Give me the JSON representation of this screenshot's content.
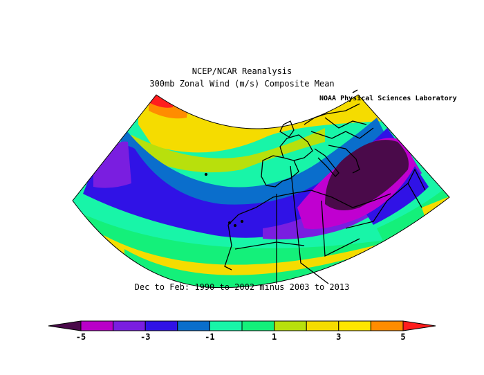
{
  "header": {
    "title_line1": "NCEP/NCAR Reanalysis",
    "title_line2": "300mb Zonal Wind (m/s) Composite Mean",
    "credit": "NOAA Physical Sciences Laboratory"
  },
  "subtitle": "Dec to Feb: 1990 to 2002 minus 2003 to 2013",
  "colorbar": {
    "colors": [
      "#4a0a4a",
      "#b900c8",
      "#7a1ee0",
      "#3012e6",
      "#0a6ecc",
      "#18f5a8",
      "#14f07a",
      "#b8e00c",
      "#f5dc00",
      "#ffe600",
      "#ff8c00",
      "#ff1e1e"
    ],
    "tick_labels": [
      "-5",
      "-3",
      "-1",
      "1",
      "3",
      "5"
    ]
  },
  "map_colors": {
    "dark": "#4a0a4a",
    "magenta": "#c000d0",
    "purple": "#7a1ee0",
    "blue": "#3012e6",
    "steel": "#0a6ecc",
    "aqua": "#18f5a8",
    "green": "#14f07a",
    "lime": "#b8e00c",
    "yellow": "#f5dc00",
    "orange": "#ff8c00",
    "red": "#ff1e1e"
  }
}
